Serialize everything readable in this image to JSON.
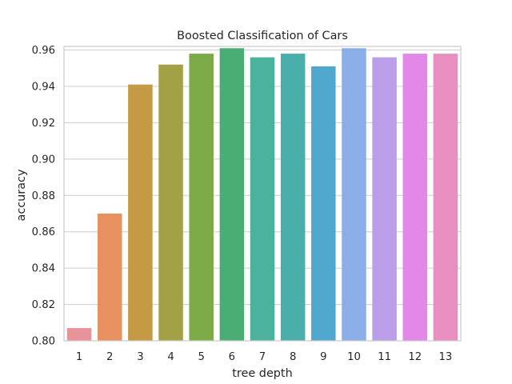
{
  "chart_data": {
    "type": "bar",
    "title": "Boosted Classification of Cars",
    "xlabel": "tree depth",
    "ylabel": "accuracy",
    "categories": [
      "1",
      "2",
      "3",
      "4",
      "5",
      "6",
      "7",
      "8",
      "9",
      "10",
      "11",
      "12",
      "13"
    ],
    "values": [
      0.807,
      0.87,
      0.941,
      0.952,
      0.958,
      0.961,
      0.956,
      0.958,
      0.951,
      0.961,
      0.956,
      0.958,
      0.958
    ],
    "ylim": [
      0.8,
      0.962
    ],
    "yticks": [
      "0.80",
      "0.82",
      "0.84",
      "0.86",
      "0.88",
      "0.90",
      "0.92",
      "0.94",
      "0.96"
    ],
    "grid": true,
    "colors": [
      "#e8939a",
      "#e6915f",
      "#c59a45",
      "#a3a146",
      "#7caa47",
      "#4aae74",
      "#4bb29e",
      "#4aaeab",
      "#50a8cf",
      "#8caee8",
      "#bb9ee9",
      "#e388e8",
      "#e88ec0"
    ]
  }
}
